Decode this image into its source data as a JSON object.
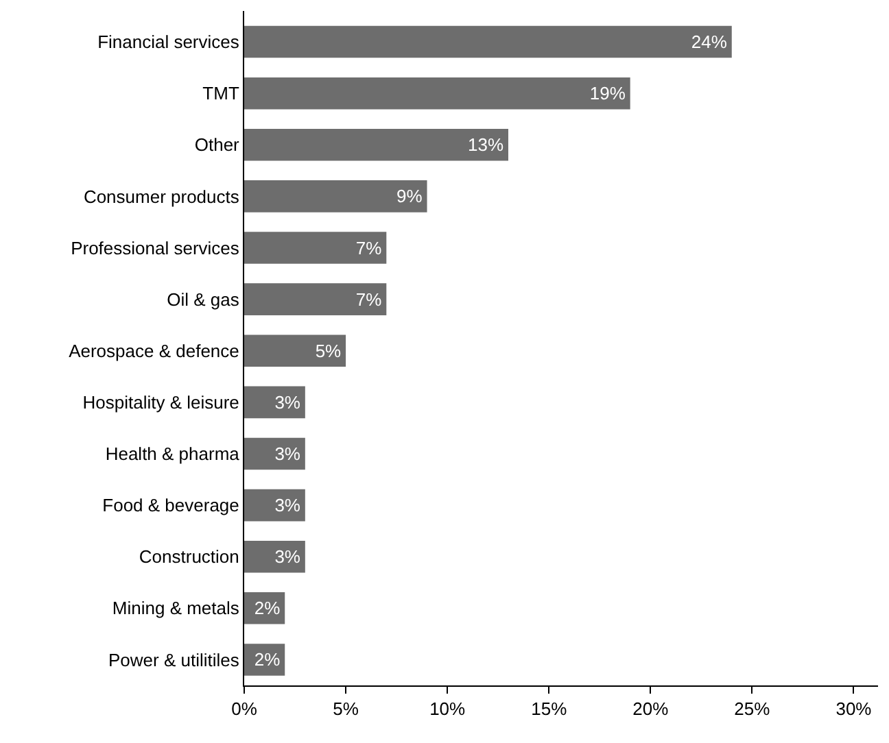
{
  "chart_data": {
    "type": "bar",
    "orientation": "horizontal",
    "categories": [
      "Financial services",
      "TMT",
      "Other",
      "Consumer products",
      "Professional services",
      "Oil & gas",
      "Aerospace & defence",
      "Hospitality & leisure",
      "Health & pharma",
      "Food & beverage",
      "Construction",
      "Mining & metals",
      "Power & utilitiles"
    ],
    "values": [
      24,
      19,
      13,
      9,
      7,
      7,
      5,
      3,
      3,
      3,
      3,
      2,
      2
    ],
    "value_labels": [
      "24%",
      "19%",
      "13%",
      "9%",
      "7%",
      "7%",
      "5%",
      "3%",
      "3%",
      "3%",
      "3%",
      "2%",
      "2%"
    ],
    "color": "#6d6d6d",
    "xlim": [
      0,
      31.2
    ],
    "xticks": [
      {
        "value": 0,
        "label": "0%"
      },
      {
        "value": 5,
        "label": "5%"
      },
      {
        "value": 10,
        "label": "10%"
      },
      {
        "value": 15,
        "label": "15%"
      },
      {
        "value": 20,
        "label": "20%"
      },
      {
        "value": 25,
        "label": "25%"
      },
      {
        "value": 30,
        "label": "30%"
      }
    ],
    "legend": false
  }
}
